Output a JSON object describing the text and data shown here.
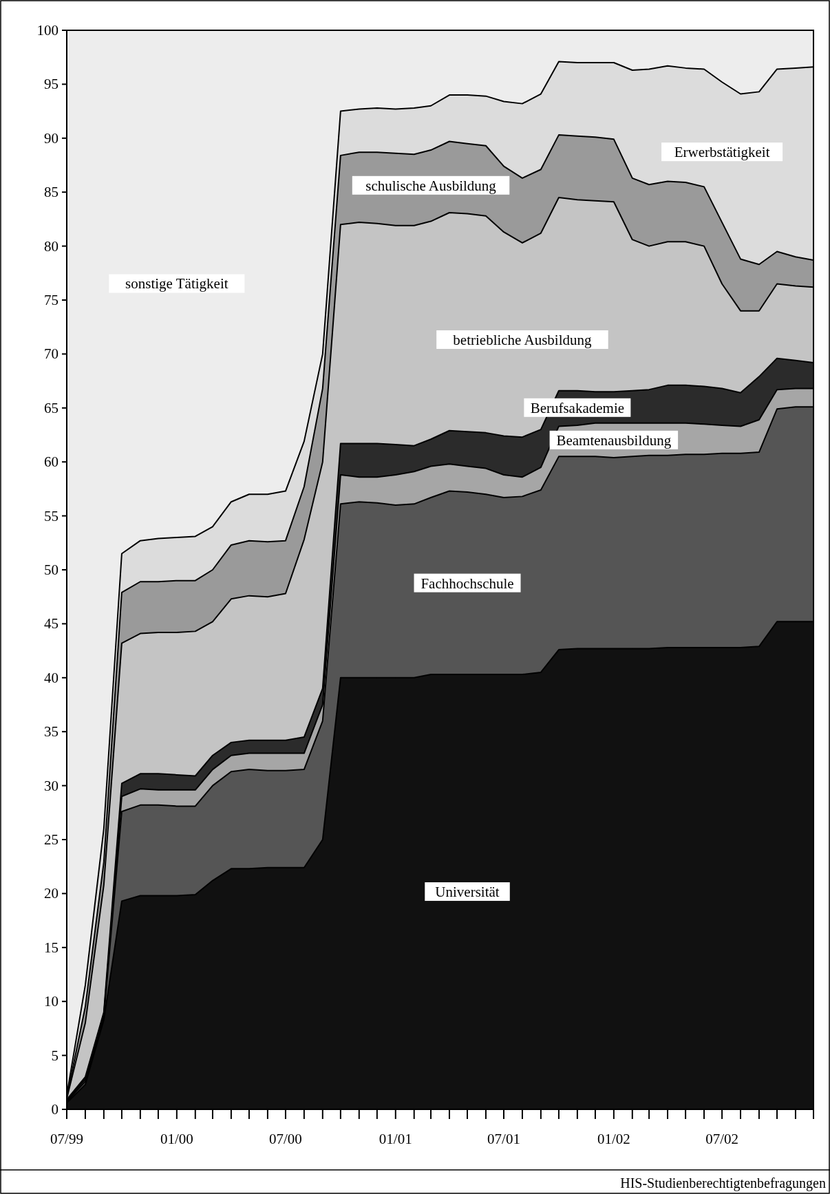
{
  "chart_data": {
    "type": "area",
    "stacked": true,
    "x": [
      "1999-07",
      "1999-08",
      "1999-09",
      "1999-10",
      "1999-11",
      "1999-12",
      "2000-01",
      "2000-02",
      "2000-03",
      "2000-04",
      "2000-05",
      "2000-06",
      "2000-07",
      "2000-08",
      "2000-09",
      "2000-10",
      "2000-11",
      "2000-12",
      "2001-01",
      "2001-02",
      "2001-03",
      "2001-04",
      "2001-05",
      "2001-06",
      "2001-07",
      "2001-08",
      "2001-09",
      "2001-10",
      "2001-11",
      "2001-12",
      "2002-01",
      "2002-02",
      "2002-03",
      "2002-04",
      "2002-05",
      "2002-06",
      "2002-07",
      "2002-08",
      "2002-09",
      "2002-10",
      "2002-11",
      "2002-12"
    ],
    "series": [
      {
        "name": "Universität",
        "color": "#111111",
        "values": [
          0.6,
          2.3,
          8.3,
          19.3,
          19.8,
          19.8,
          19.8,
          19.9,
          21.2,
          22.3,
          22.3,
          22.4,
          22.4,
          22.4,
          25.0,
          40.0,
          40.0,
          40.0,
          40.0,
          40.0,
          40.3,
          40.3,
          40.3,
          40.3,
          40.3,
          40.3,
          40.5,
          42.6,
          42.7,
          42.7,
          42.7,
          42.7,
          42.7,
          42.8,
          42.8,
          42.8,
          42.8,
          42.8,
          42.9,
          45.2,
          45.2,
          45.2
        ]
      },
      {
        "name": "Fachhochschule",
        "color": "#555555",
        "values": [
          0.1,
          0.3,
          0.3,
          8.3,
          8.4,
          8.4,
          8.3,
          8.2,
          8.8,
          9.0,
          9.2,
          9.0,
          9.0,
          9.1,
          11.0,
          16.1,
          16.3,
          16.2,
          16.0,
          16.1,
          16.4,
          17.0,
          16.9,
          16.7,
          16.4,
          16.5,
          16.9,
          17.9,
          17.8,
          17.8,
          17.7,
          17.8,
          17.9,
          17.8,
          17.9,
          17.9,
          18.0,
          18.0,
          18.0,
          19.7,
          19.9,
          19.9
        ]
      },
      {
        "name": "Beamtenausbildung",
        "color": "#a6a6a6",
        "values": [
          0.1,
          0.2,
          0.2,
          1.4,
          1.5,
          1.4,
          1.5,
          1.5,
          1.5,
          1.5,
          1.5,
          1.6,
          1.6,
          1.5,
          1.5,
          2.7,
          2.3,
          2.4,
          2.8,
          3.0,
          2.9,
          2.5,
          2.4,
          2.4,
          2.1,
          1.8,
          2.1,
          2.8,
          2.9,
          3.1,
          3.2,
          3.1,
          3.0,
          3.0,
          2.9,
          2.8,
          2.6,
          2.5,
          3.0,
          1.8,
          1.7,
          1.7
        ]
      },
      {
        "name": "Berufsakademie",
        "color": "#2b2b2b",
        "values": [
          0.1,
          0.2,
          0.2,
          1.2,
          1.4,
          1.5,
          1.4,
          1.3,
          1.3,
          1.2,
          1.2,
          1.2,
          1.2,
          1.5,
          1.5,
          2.9,
          3.1,
          3.1,
          2.8,
          2.4,
          2.5,
          3.1,
          3.2,
          3.3,
          3.6,
          3.7,
          3.5,
          3.3,
          3.2,
          2.9,
          2.9,
          3.0,
          3.1,
          3.5,
          3.5,
          3.5,
          3.4,
          3.1,
          4.0,
          2.9,
          2.6,
          2.4
        ]
      },
      {
        "name": "betriebliche Ausbildung",
        "color": "#c4c4c4",
        "values": [
          0.1,
          5.0,
          11.8,
          13.0,
          13.0,
          13.1,
          13.2,
          13.4,
          12.4,
          13.3,
          13.4,
          13.3,
          13.6,
          18.3,
          21.0,
          20.3,
          20.5,
          20.4,
          20.3,
          20.4,
          20.2,
          20.2,
          20.2,
          20.1,
          18.9,
          18.0,
          18.2,
          17.9,
          17.7,
          17.7,
          17.6,
          14.0,
          13.3,
          13.3,
          13.3,
          13.0,
          9.7,
          7.6,
          6.1,
          6.9,
          6.9,
          7.0
        ]
      },
      {
        "name": "schulische Ausbildung",
        "color": "#9a9a9a",
        "values": [
          0.1,
          1.5,
          2.1,
          4.7,
          4.8,
          4.7,
          4.8,
          4.7,
          4.8,
          5.0,
          5.1,
          5.1,
          4.9,
          4.9,
          6.8,
          6.4,
          6.5,
          6.6,
          6.7,
          6.6,
          6.6,
          6.6,
          6.5,
          6.5,
          6.1,
          6.0,
          5.9,
          5.8,
          5.9,
          5.9,
          5.8,
          5.7,
          5.7,
          5.6,
          5.5,
          5.5,
          5.7,
          4.8,
          4.3,
          3.0,
          2.7,
          2.5
        ]
      },
      {
        "name": "Erwerbstätigkeit",
        "color": "#dcdcdc",
        "values": [
          0.2,
          2.0,
          3.1,
          3.6,
          3.8,
          4.0,
          4.0,
          4.1,
          4.0,
          4.0,
          4.3,
          4.4,
          4.6,
          4.2,
          3.2,
          4.1,
          4.0,
          4.1,
          4.1,
          4.3,
          4.1,
          4.3,
          4.5,
          4.6,
          6.0,
          6.9,
          7.0,
          6.8,
          6.8,
          6.9,
          7.1,
          10.0,
          10.7,
          10.7,
          10.6,
          10.9,
          13.0,
          15.3,
          16.0,
          16.9,
          17.5,
          17.9
        ]
      },
      {
        "name": "sonstige Tätigkeit",
        "color": "#ededed",
        "values": [
          98.7,
          88.5,
          74.0,
          48.5,
          47.3,
          47.1,
          47.0,
          46.9,
          46.0,
          43.7,
          43.0,
          43.0,
          42.7,
          38.1,
          30.0,
          7.5,
          7.3,
          7.2,
          7.3,
          7.2,
          7.0,
          6.0,
          6.0,
          6.1,
          6.6,
          6.8,
          5.9,
          2.9,
          3.0,
          3.0,
          3.0,
          3.7,
          3.6,
          3.3,
          3.5,
          3.6,
          4.8,
          5.9,
          5.7,
          3.6,
          3.5,
          3.4
        ]
      }
    ],
    "xlim": [
      "1999-07",
      "2002-12"
    ],
    "xticks": [
      {
        "value": "1999-07",
        "label": "07/99"
      },
      {
        "value": "1999-08",
        "label": null
      },
      {
        "value": "1999-09",
        "label": null
      },
      {
        "value": "1999-10",
        "label": null
      },
      {
        "value": "1999-11",
        "label": null
      },
      {
        "value": "1999-12",
        "label": null
      },
      {
        "value": "2000-01",
        "label": "01/00"
      },
      {
        "value": "2000-02",
        "label": null
      },
      {
        "value": "2000-03",
        "label": null
      },
      {
        "value": "2000-04",
        "label": null
      },
      {
        "value": "2000-05",
        "label": null
      },
      {
        "value": "2000-06",
        "label": null
      },
      {
        "value": "2000-07",
        "label": "07/00"
      },
      {
        "value": "2000-08",
        "label": null
      },
      {
        "value": "2000-09",
        "label": null
      },
      {
        "value": "2000-10",
        "label": null
      },
      {
        "value": "2000-11",
        "label": null
      },
      {
        "value": "2000-12",
        "label": null
      },
      {
        "value": "2001-01",
        "label": "01/01"
      },
      {
        "value": "2001-02",
        "label": null
      },
      {
        "value": "2001-03",
        "label": null
      },
      {
        "value": "2001-04",
        "label": null
      },
      {
        "value": "2001-05",
        "label": null
      },
      {
        "value": "2001-06",
        "label": null
      },
      {
        "value": "2001-07",
        "label": "07/01"
      },
      {
        "value": "2001-08",
        "label": null
      },
      {
        "value": "2001-09",
        "label": null
      },
      {
        "value": "2001-10",
        "label": null
      },
      {
        "value": "2001-11",
        "label": null
      },
      {
        "value": "2001-12",
        "label": null
      },
      {
        "value": "2002-01",
        "label": "01/02"
      },
      {
        "value": "2002-02",
        "label": null
      },
      {
        "value": "2002-03",
        "label": null
      },
      {
        "value": "2002-04",
        "label": null
      },
      {
        "value": "2002-05",
        "label": null
      },
      {
        "value": "2002-06",
        "label": null
      },
      {
        "value": "2002-07",
        "label": "07/02"
      },
      {
        "value": "2002-08",
        "label": null
      },
      {
        "value": "2002-09",
        "label": null
      },
      {
        "value": "2002-10",
        "label": null
      },
      {
        "value": "2002-11",
        "label": null
      },
      {
        "value": "2002-12",
        "label": null
      }
    ],
    "ylim": [
      0,
      100
    ],
    "yticks": [
      0,
      5,
      10,
      15,
      20,
      25,
      30,
      35,
      40,
      45,
      50,
      55,
      60,
      65,
      70,
      75,
      80,
      85,
      90,
      95,
      100
    ],
    "grid": false,
    "annotations": [
      "HIS-Studienberechtigtenbefragungen"
    ]
  }
}
